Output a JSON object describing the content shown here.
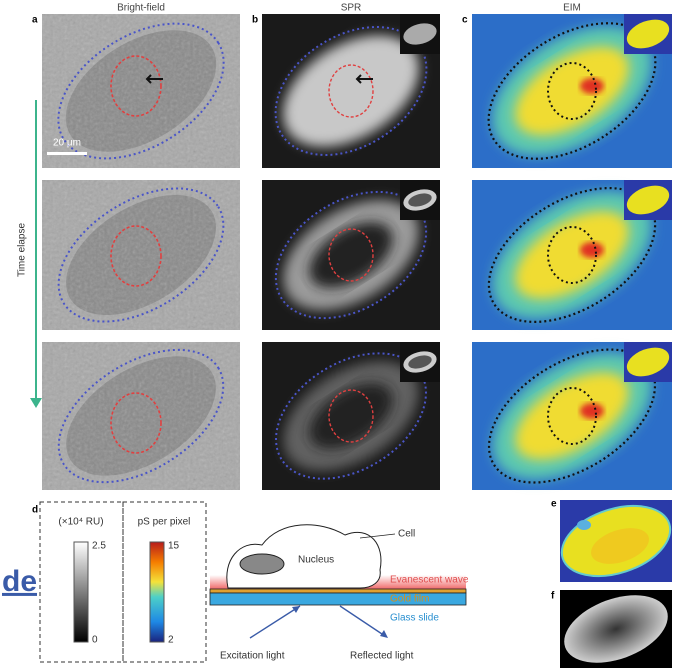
{
  "columns": [
    {
      "label": "a",
      "title": "Bright-field"
    },
    {
      "label": "b",
      "title": "SPR"
    },
    {
      "label": "c",
      "title": "EIM"
    }
  ],
  "scale_bar": "20 μm",
  "time_label": "Time elapse",
  "panel_d": {
    "label": "d",
    "spr_bar": {
      "unit": "(×10⁴ RU)",
      "max": "2.5",
      "min": "0"
    },
    "eim_bar": {
      "unit": "pS per pixel",
      "max": "15",
      "min": "2"
    }
  },
  "diagram": {
    "cell": "Cell",
    "nucleus": "Nucleus",
    "evanescent": "Evanescent wave",
    "gold": "Gold film",
    "glass": "Glass slide",
    "excitation": "Excitation light",
    "reflected": "Reflected light"
  },
  "panel_e": "e",
  "panel_f": "f",
  "fragment": "de"
}
